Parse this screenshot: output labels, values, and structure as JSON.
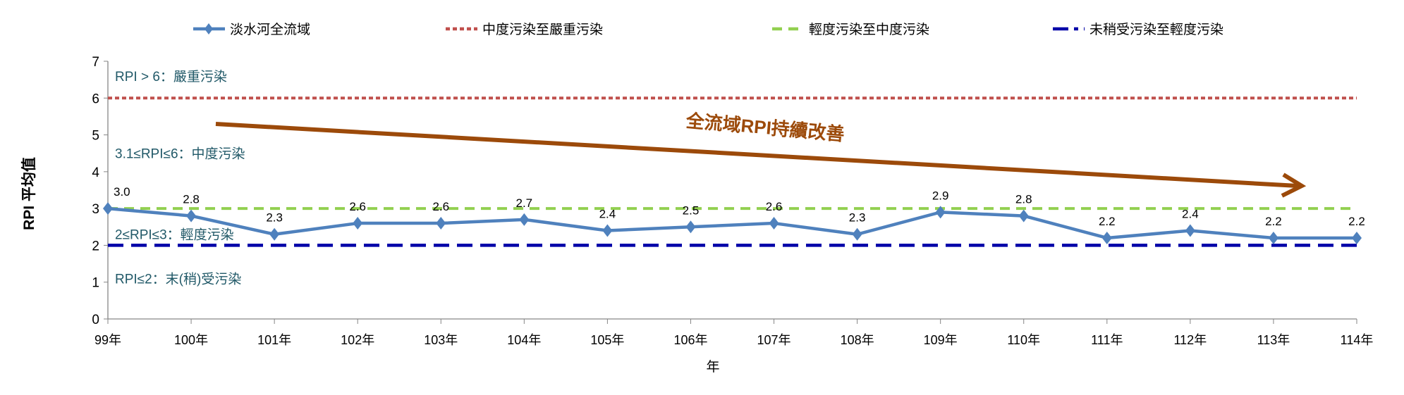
{
  "chart_data": {
    "type": "line",
    "title": "",
    "xlabel": "年",
    "ylabel": "RPI 平均值",
    "ylim": [
      0,
      7
    ],
    "yticks": [
      "0",
      "1",
      "2",
      "3",
      "4",
      "5",
      "6",
      "7"
    ],
    "grid": false,
    "legend_position": "top",
    "categories": [
      "99年",
      "100年",
      "101年",
      "102年",
      "103年",
      "104年",
      "105年",
      "106年",
      "107年",
      "108年",
      "109年",
      "110年",
      "111年",
      "112年",
      "113年",
      "114年"
    ],
    "series": [
      {
        "name": "淡水河全流域",
        "color": "#4f81bd",
        "marker": "diamond",
        "values": [
          3.0,
          2.8,
          2.3,
          2.6,
          2.6,
          2.7,
          2.4,
          2.5,
          2.6,
          2.3,
          2.9,
          2.8,
          2.2,
          2.4,
          2.2,
          2.2
        ],
        "labels": [
          "3.0",
          "2.8",
          "2.3",
          "2.6",
          "2.6",
          "2.7",
          "2.4",
          "2.5",
          "2.6",
          "2.3",
          "2.9",
          "2.8",
          "2.2",
          "2.4",
          "2.2",
          "2.2"
        ]
      }
    ],
    "reference_lines": [
      {
        "name": "中度污染至嚴重污染",
        "value": 6,
        "color": "#c0504d",
        "style": "dotted"
      },
      {
        "name": "輕度污染至中度污染",
        "value": 3,
        "color": "#92d050",
        "style": "dashed"
      },
      {
        "name": "未稍受污染至輕度污染",
        "value": 2,
        "color": "#0000a8",
        "style": "long-dash"
      }
    ],
    "zone_labels": [
      {
        "text": "RPI > 6：嚴重污染",
        "value": 6.6
      },
      {
        "text": "3.1≤RPI≤6：中度污染",
        "value": 4.5
      },
      {
        "text": "2≤RPI≤3：輕度污染",
        "value": 2.3
      },
      {
        "text": "RPI≤2：末(稍)受污染",
        "value": 1.1
      }
    ],
    "annotation": {
      "text": "全流域RPI持續改善",
      "color": "#9c4a0a",
      "arrow": "downward trend"
    },
    "zone_label_color": "#215968"
  }
}
